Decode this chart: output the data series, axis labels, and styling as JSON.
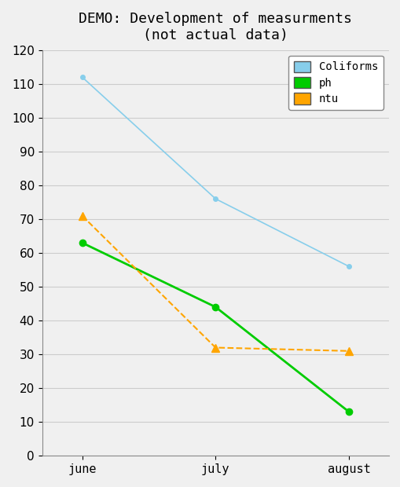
{
  "title": "DEMO: Development of measurments\n(not actual data)",
  "x_labels": [
    "june",
    "july",
    "august"
  ],
  "x_positions": [
    0,
    1,
    2
  ],
  "series": {
    "Coliforms": {
      "values": [
        112,
        76,
        56
      ],
      "color": "#87CEEB",
      "linestyle": "-",
      "marker": "o",
      "markersize": 4,
      "linewidth": 1.2
    },
    "ph": {
      "values": [
        63,
        44,
        13
      ],
      "color": "#00CC00",
      "linestyle": "-",
      "marker": "o",
      "markersize": 6,
      "linewidth": 2
    },
    "ntu": {
      "values": [
        71,
        32,
        31
      ],
      "color": "#FFA500",
      "linestyle": "--",
      "marker": "^",
      "markersize": 7,
      "linewidth": 1.5
    }
  },
  "ylim": [
    0,
    120
  ],
  "yticks": [
    0,
    10,
    20,
    30,
    40,
    50,
    60,
    70,
    80,
    90,
    100,
    110,
    120
  ],
  "background_color": "#F0F0F0",
  "grid_color": "#CCCCCC",
  "title_fontsize": 13,
  "tick_fontsize": 11,
  "legend_border_color": "#888888",
  "legend_box_colors": {
    "Coliforms": "#87CEEB",
    "ph": "#00CC00",
    "ntu": "#FFA500"
  }
}
